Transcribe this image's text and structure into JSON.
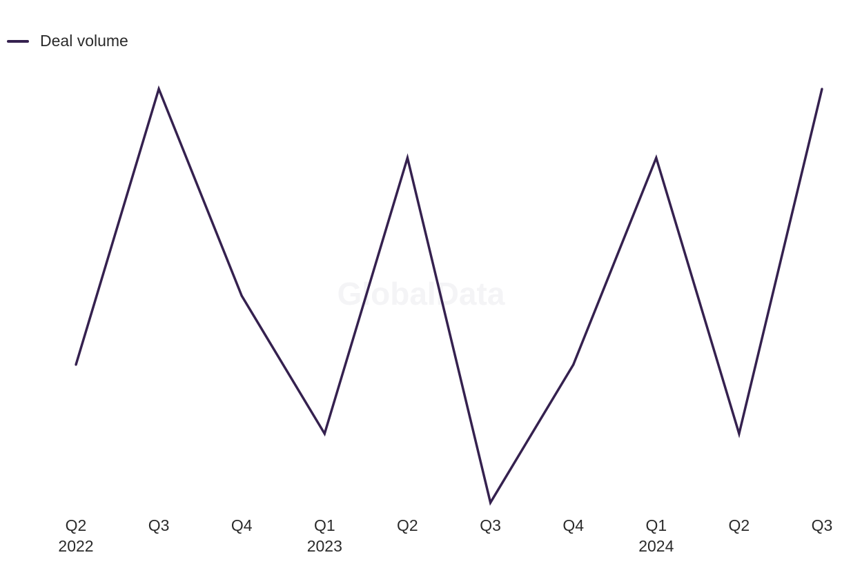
{
  "legend": {
    "label": "Deal volume"
  },
  "watermark": "GlobalData",
  "colors": {
    "series": "#35214f",
    "background": "#ffffff"
  },
  "chart_data": {
    "type": "line",
    "title": "",
    "xlabel": "",
    "ylabel": "",
    "grid": false,
    "y_axis_visible": false,
    "legend_position": "top-left",
    "x": [
      "Q2 2022",
      "Q3 2022",
      "Q4 2022",
      "Q1 2023",
      "Q2 2023",
      "Q3 2023",
      "Q4 2023",
      "Q1 2024",
      "Q2 2024",
      "Q3 2024"
    ],
    "tick_labels": [
      {
        "quarter": "Q2",
        "year": "2022"
      },
      {
        "quarter": "Q3",
        "year": ""
      },
      {
        "quarter": "Q4",
        "year": ""
      },
      {
        "quarter": "Q1",
        "year": "2023"
      },
      {
        "quarter": "Q2",
        "year": ""
      },
      {
        "quarter": "Q3",
        "year": ""
      },
      {
        "quarter": "Q4",
        "year": ""
      },
      {
        "quarter": "Q1",
        "year": "2024"
      },
      {
        "quarter": "Q2",
        "year": ""
      },
      {
        "quarter": "Q3",
        "year": ""
      }
    ],
    "ylim": [
      0,
      6
    ],
    "series": [
      {
        "name": "Deal volume",
        "values": [
          2,
          6,
          3,
          1,
          5,
          0,
          2,
          5,
          1,
          6
        ]
      }
    ]
  }
}
